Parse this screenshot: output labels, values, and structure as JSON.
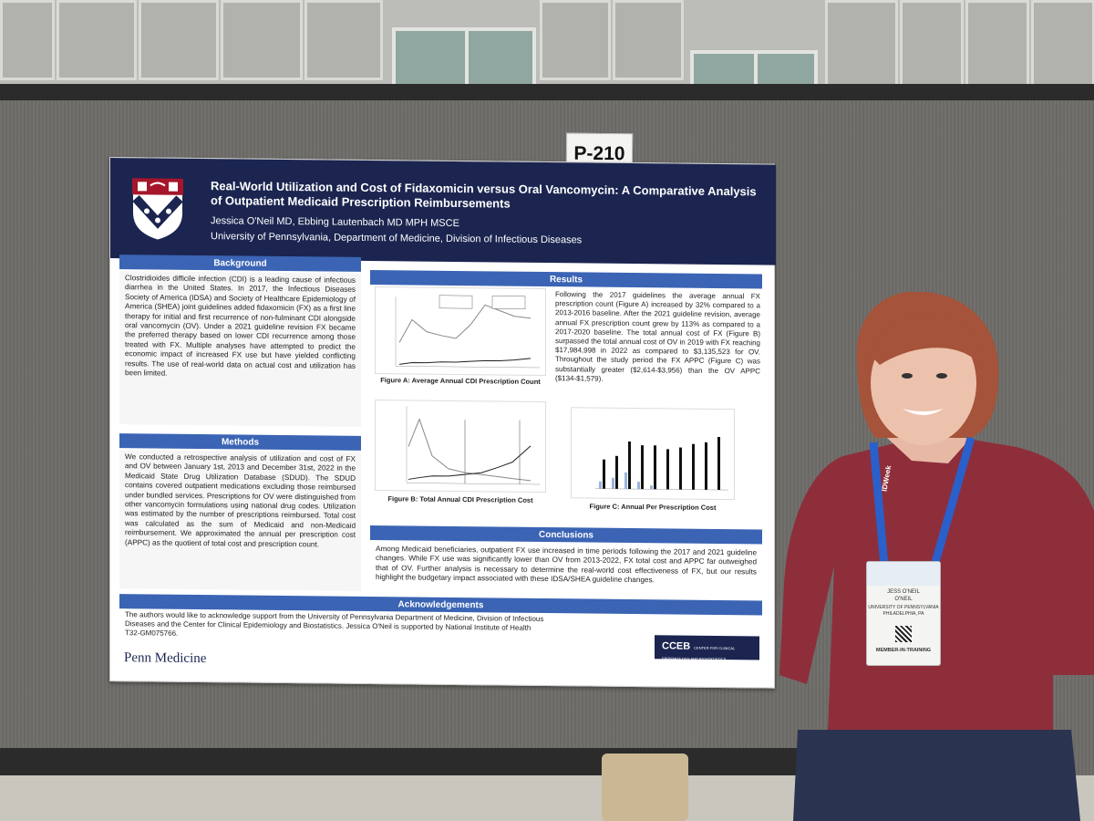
{
  "booth_sign": "P-210",
  "poster": {
    "title": "Real-World Utilization and Cost of Fidaxomicin versus Oral Vancomycin: A Comparative Analysis of Outpatient Medicaid Prescription Reimbursements",
    "authors": "Jessica O'Neil MD, Ebbing Lautenbach MD MPH MSCE",
    "affiliation": "University of Pennsylvania, Department of Medicine, Division of Infectious Diseases",
    "background_heading": "Background",
    "background_text": "Clostridioides difficile infection (CDI) is a leading cause of infectious diarrhea in the United States. In 2017, the Infectious Diseases Society of America (IDSA) and Society of Healthcare Epidemiology of America (SHEA) joint guidelines added fidaxomicin (FX) as a first line therapy for initial and first recurrence of non-fulminant CDI alongside oral vancomycin (OV). Under a 2021 guideline revision FX became the preferred therapy based on lower CDI recurrence among those treated with FX. Multiple analyses have attempted to predict the economic impact of increased FX use but have yielded conflicting results. The use of real-world data on actual cost and utilization has been limited.",
    "methods_heading": "Methods",
    "methods_text": "We conducted a retrospective analysis of utilization and cost of FX and OV between January 1st, 2013 and December 31st, 2022 in the Medicaid State Drug Utilization Database (SDUD). The SDUD contains covered outpatient medications excluding those reimbursed under bundled services. Prescriptions for OV were distinguished from other vancomycin formulations using national drug codes. Utilization was estimated by the number of prescriptions reimbursed. Total cost was calculated as the sum of Medicaid and non-Medicaid reimbursement. We approximated the annual per prescription cost (APPC) as the quotient of total cost and prescription count.",
    "results_heading": "Results",
    "results_text": "Following the 2017 guidelines the average annual FX prescription count (Figure A) increased by 32% compared to a 2013-2016 baseline. After the 2021 guideline revision, average annual FX prescription count grew by 113% as compared to a 2017-2020 baseline. The total annual cost of FX (Figure B) surpassed the total annual cost of OV in 2019 with FX reaching $17,984,998 in 2022 as compared to $3,135,523 for OV. Throughout the study period the FX APPC (Figure C) was substantially greater ($2,614-$3,956) than the OV APPC ($134-$1,579).",
    "fig_a_caption": "Figure A: Average Annual CDI Prescription Count",
    "fig_b_caption": "Figure B: Total Annual CDI Prescription Cost",
    "fig_c_caption": "Figure C: Annual Per Prescription Cost",
    "conclusions_heading": "Conclusions",
    "conclusions_text": "Among Medicaid beneficiaries, outpatient FX use increased in time periods following the 2017 and 2021 guideline changes. While FX use was significantly lower than OV from 2013-2022, FX total cost and APPC far outweighed that of OV. Further analysis is necessary to determine the real-world cost effectiveness of FX, but our results highlight the budgetary impact associated with these IDSA/SHEA guideline changes.",
    "ack_heading": "Acknowledgements",
    "ack_text": "The authors would like to acknowledge support from the University of Pennsylvania Department of Medicine, Division of Infectious Diseases and the Center for Clinical Epidemiology and Biostatistics. Jessica O'Neil is supported by National Institute of Health T32-GM075766.",
    "logo_left": "Penn Medicine",
    "logo_right": "CCEB",
    "logo_right_sub": "CENTER FOR CLINICAL EPIDEMIOLOGY AND BIOSTATISTICS"
  },
  "badge": {
    "name_line1": "JESS O'NEIL",
    "name_line2": "O'NEIL",
    "org": "UNIVERSITY OF PENNSYLVANIA",
    "city": "PHILADELPHIA, PA",
    "role": "MEMBER-IN-TRAINING",
    "lanyard_text": "IDWeek"
  },
  "colors": {
    "poster_navy": "#1b2550",
    "section_blue": "#3b64b4",
    "shirt": "#8e2e3a",
    "lanyard": "#2b5fc9"
  }
}
